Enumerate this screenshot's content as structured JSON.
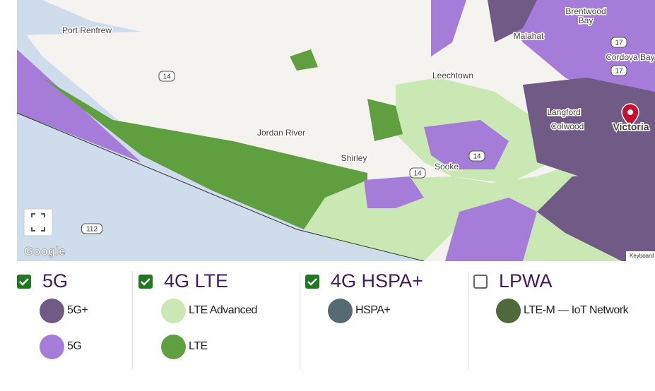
{
  "map": {
    "labels": [
      {
        "text": "Port Renfrew",
        "kind": "place"
      },
      {
        "text": "Brentwood",
        "kind": "place"
      },
      {
        "text": "Bay",
        "kind": "place"
      },
      {
        "text": "Malahat",
        "kind": "place"
      },
      {
        "text": "Cordova Bay",
        "kind": "place"
      },
      {
        "text": "Leechtown",
        "kind": "place"
      },
      {
        "text": "Langford",
        "kind": "place"
      },
      {
        "text": "Colwood",
        "kind": "place"
      },
      {
        "text": "Victoria",
        "kind": "city"
      },
      {
        "text": "Jordan River",
        "kind": "place"
      },
      {
        "text": "Shirley",
        "kind": "place"
      },
      {
        "text": "Sooke",
        "kind": "place"
      },
      {
        "text": "14",
        "kind": "shield"
      },
      {
        "text": "14",
        "kind": "shield"
      },
      {
        "text": "14",
        "kind": "shield"
      },
      {
        "text": "17",
        "kind": "shield"
      },
      {
        "text": "17",
        "kind": "shield"
      },
      {
        "text": "112",
        "kind": "shield"
      }
    ],
    "attribution": "Google",
    "keyboard": "Keyboard"
  },
  "legend": [
    {
      "title": "5G",
      "checked": true,
      "items": [
        {
          "label": "5G+",
          "color": "#6f5b85"
        },
        {
          "label": "5G",
          "color": "#a67cd9"
        }
      ]
    },
    {
      "title": "4G LTE",
      "checked": true,
      "items": [
        {
          "label": "LTE Advanced",
          "color": "#c9e8b3"
        },
        {
          "label": "LTE",
          "color": "#5f9f40"
        }
      ]
    },
    {
      "title": "4G HSPA+",
      "checked": true,
      "items": [
        {
          "label": "HSPA+",
          "color": "#566b71"
        }
      ]
    },
    {
      "title": "LPWA",
      "checked": false,
      "items": [
        {
          "label": "LTE-M — IoT Network",
          "color": "#4e6a3c"
        }
      ]
    }
  ]
}
